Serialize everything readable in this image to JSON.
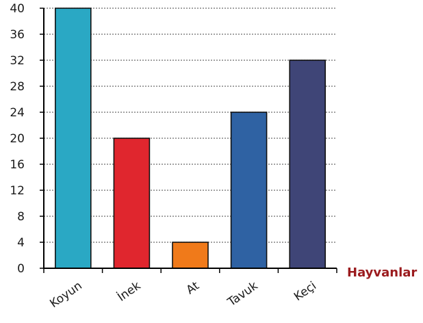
{
  "chart_data": {
    "type": "bar",
    "categories": [
      "Koyun",
      "İnek",
      "At",
      "Tavuk",
      "Keçi"
    ],
    "values": [
      40,
      20,
      4,
      24,
      32
    ],
    "xlabel": "Hayvanlar",
    "ylabel": "",
    "ylim": [
      0,
      40
    ],
    "yticks": [
      0,
      4,
      8,
      12,
      16,
      20,
      24,
      28,
      32,
      36,
      40
    ],
    "grid": true,
    "bar_colors": [
      "#2aa8c4",
      "#e0262e",
      "#f07a1a",
      "#2f62a3",
      "#3f4577"
    ],
    "xlabel_color": "#9b1b1e"
  }
}
